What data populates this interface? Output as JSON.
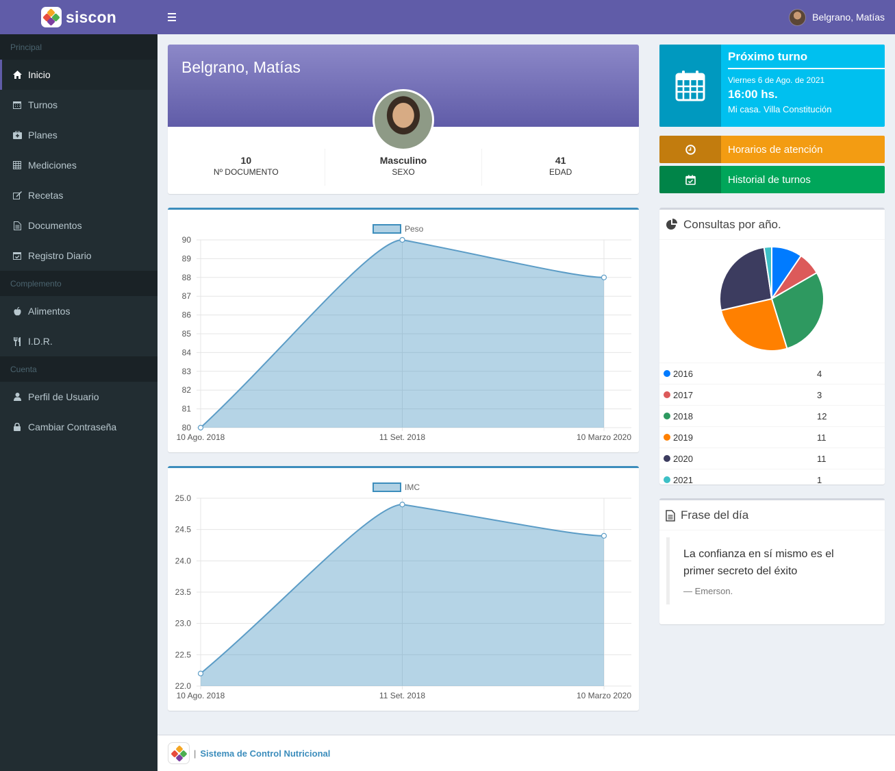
{
  "app": {
    "brand": "siscon",
    "footer_text": "Sistema de Control Nutricional",
    "footer_sep": "|"
  },
  "header": {
    "user_name": "Belgrano, Matías"
  },
  "sidebar": {
    "sections": [
      {
        "title": "Principal",
        "items": [
          {
            "label": "Inicio",
            "icon": "home-icon"
          },
          {
            "label": "Turnos",
            "icon": "calendar-icon"
          },
          {
            "label": "Planes",
            "icon": "medkit-icon"
          },
          {
            "label": "Mediciones",
            "icon": "table-icon"
          },
          {
            "label": "Recetas",
            "icon": "edit-icon"
          },
          {
            "label": "Documentos",
            "icon": "document-icon"
          },
          {
            "label": "Registro Diario",
            "icon": "calendar-check-icon"
          }
        ]
      },
      {
        "title": "Complemento",
        "items": [
          {
            "label": "Alimentos",
            "icon": "apple-icon"
          },
          {
            "label": "I.D.R.",
            "icon": "cutlery-icon"
          }
        ]
      },
      {
        "title": "Cuenta",
        "items": [
          {
            "label": "Perfil de Usuario",
            "icon": "user-icon"
          },
          {
            "label": "Cambiar Contraseña",
            "icon": "lock-icon"
          }
        ]
      }
    ]
  },
  "profile": {
    "name": "Belgrano, Matías",
    "stats": [
      {
        "value": "10",
        "label": "Nº DOCUMENTO"
      },
      {
        "value": "Masculino",
        "label": "SEXO"
      },
      {
        "value": "41",
        "label": "EDAD"
      }
    ]
  },
  "next_turn": {
    "title": "Próximo turno",
    "date": "Viernes 6 de Ago. de 2021",
    "time": "16:00 hs.",
    "place": "Mi casa. Villa Constitución"
  },
  "quick_links": {
    "hours": "Horarios de atención",
    "history": "Historial de turnos"
  },
  "consultas": {
    "title": "Consultas por año.",
    "rows": [
      {
        "year": "2016",
        "count": "4",
        "color": "#007bff"
      },
      {
        "year": "2017",
        "count": "3",
        "color": "#dc5a5a"
      },
      {
        "year": "2018",
        "count": "12",
        "color": "#2e9960"
      },
      {
        "year": "2019",
        "count": "11",
        "color": "#ff8000"
      },
      {
        "year": "2020",
        "count": "11",
        "color": "#3c3c5f"
      },
      {
        "year": "2021",
        "count": "1",
        "color": "#3ec0c6"
      }
    ]
  },
  "quote": {
    "title": "Frase del día",
    "text": "La confianza en sí mismo es el primer secreto del éxito",
    "author": "— Emerson."
  },
  "chart_data": [
    {
      "type": "area",
      "series": [
        {
          "name": "Peso",
          "values": [
            80,
            90,
            88
          ]
        }
      ],
      "categories": [
        "10 Ago. 2018",
        "11 Set. 2018",
        "10 Marzo 2020"
      ],
      "ylim": [
        80,
        90
      ],
      "yticks": [
        "80",
        "81",
        "82",
        "83",
        "84",
        "85",
        "86",
        "87",
        "88",
        "89",
        "90"
      ],
      "color": "#3c8dbc"
    },
    {
      "type": "area",
      "series": [
        {
          "name": "IMC",
          "values": [
            22.2,
            24.9,
            24.4
          ]
        }
      ],
      "categories": [
        "10 Ago. 2018",
        "11 Set. 2018",
        "10 Marzo 2020"
      ],
      "ylim": [
        22.0,
        25.0
      ],
      "yticks": [
        "22.0",
        "22.5",
        "23.0",
        "23.5",
        "24.0",
        "24.5",
        "25.0"
      ],
      "color": "#3c8dbc"
    }
  ],
  "colors": {
    "primary": "#605ca8",
    "sidebar": "#222d32",
    "info": "#00c0ef",
    "warning": "#f39c12",
    "success": "#00a65a"
  }
}
